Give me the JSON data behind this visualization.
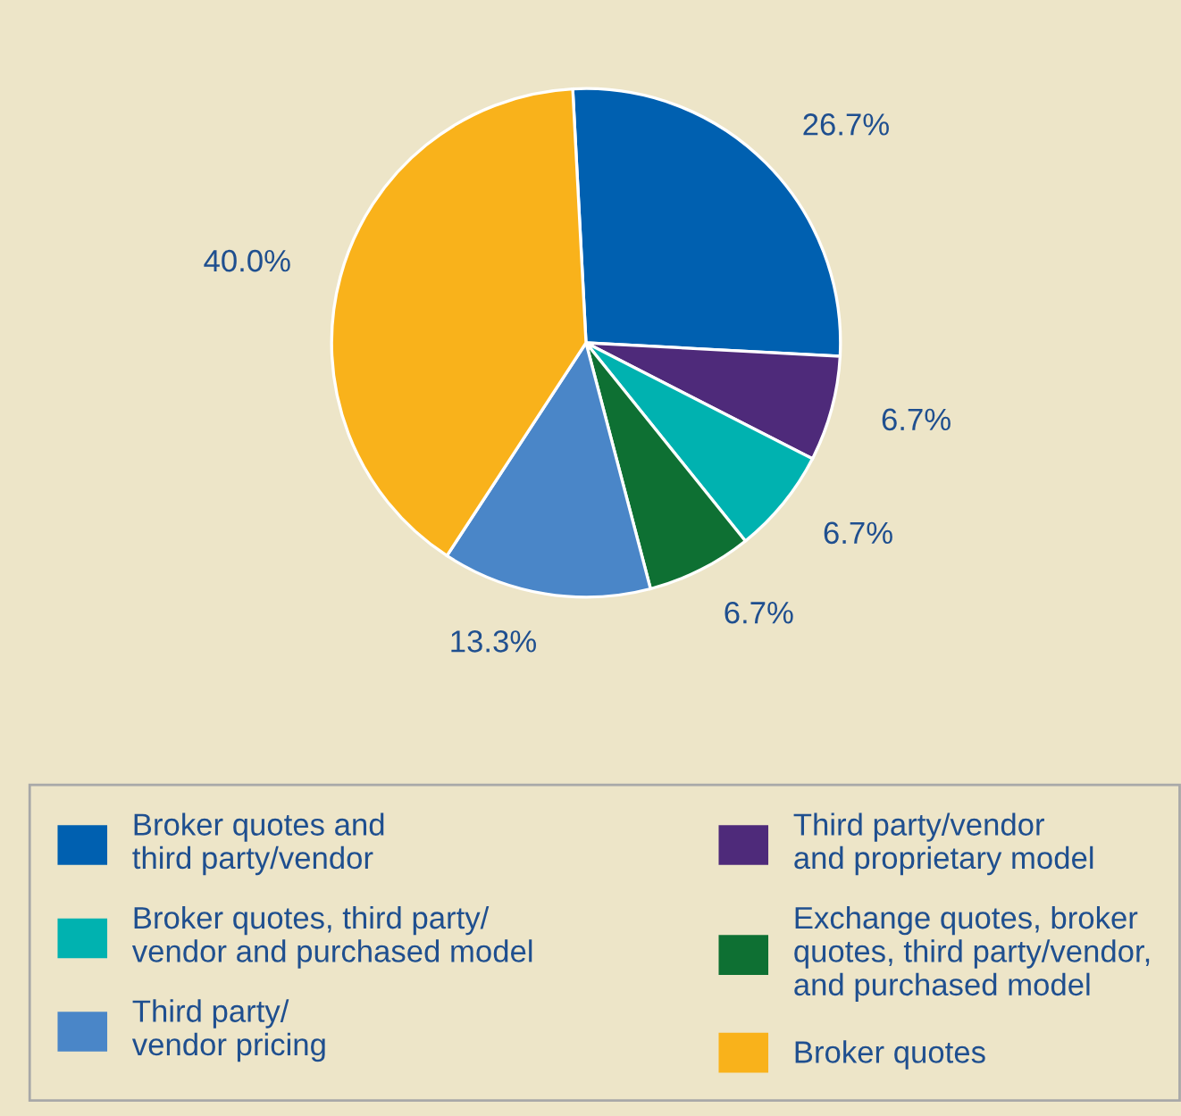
{
  "chart_data": {
    "type": "pie",
    "categories": [
      "Broker quotes and\nthird party/vendor",
      "Third party/vendor\nand proprietary model",
      "Broker quotes, third party/\nvendor and purchased model",
      "Exchange quotes, broker\nquotes, third party/vendor,\nand purchased model",
      "Third party/\nvendor pricing",
      "Broker quotes"
    ],
    "values": [
      26.7,
      6.7,
      6.7,
      6.7,
      13.3,
      40.0
    ],
    "value_labels": [
      "26.7%",
      "6.7%",
      "6.7%",
      "6.7%",
      "13.3%",
      "40.0%"
    ],
    "colors": [
      "#0060b0",
      "#4e2a7a",
      "#00b2b0",
      "#0e7033",
      "#4a86c8",
      "#f9b21b"
    ],
    "legend": "bottom"
  }
}
